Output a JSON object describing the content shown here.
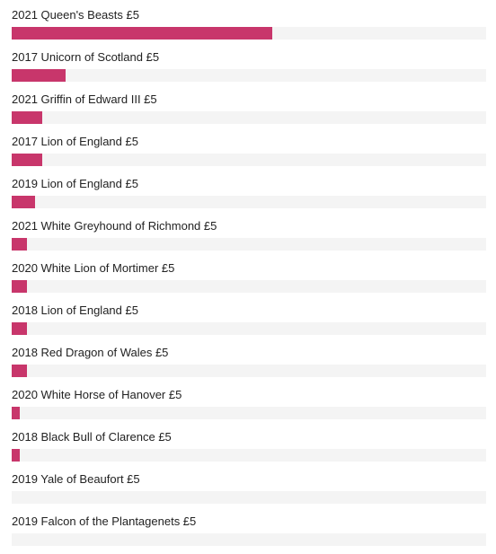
{
  "chart_data": {
    "type": "bar",
    "orientation": "horizontal",
    "bar_color": "#c8366b",
    "track_color": "#f4f4f4",
    "xlim": [
      0,
      100
    ],
    "categories": [
      "2021 Queen's Beasts £5",
      "2017 Unicorn of Scotland £5",
      "2021 Griffin of Edward III £5",
      "2017 Lion of England £5",
      "2019 Lion of England £5",
      "2021 White Greyhound of Richmond £5",
      "2020 White Lion of Mortimer £5",
      "2018 Lion of England £5",
      "2018 Red Dragon of Wales £5",
      "2020 White Horse of Hanover £5",
      "2018 Black Bull of Clarence £5",
      "2019 Yale of Beaufort £5",
      "2019 Falcon of the Plantagenets £5"
    ],
    "values": [
      55,
      11.4,
      6.4,
      6.4,
      4.9,
      3.2,
      3.2,
      3.2,
      3.2,
      1.7,
      1.7,
      0,
      0
    ]
  }
}
